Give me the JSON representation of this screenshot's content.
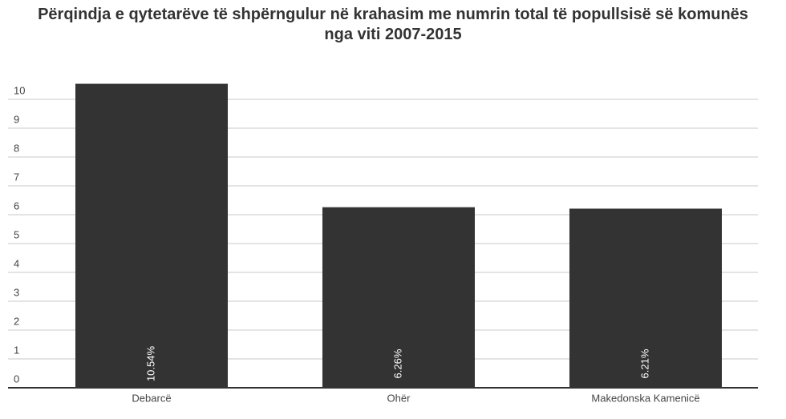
{
  "chart_data": {
    "type": "bar",
    "title": "Përqindja e qytetarëve të shpërngulur në krahasim me numrin total të popullsisë së komunës nga viti 2007-2015",
    "categories": [
      "Debarcë",
      "Ohër",
      "Makedonska Kamenicë"
    ],
    "values": [
      10.54,
      6.26,
      6.21
    ],
    "value_labels": [
      "10.54%",
      "6.26%",
      "6.21%"
    ],
    "color": "#333333",
    "ylim": [
      0,
      11
    ],
    "yticks": [
      0,
      1,
      2,
      3,
      4,
      5,
      6,
      7,
      8,
      9,
      10
    ],
    "grid": true
  }
}
